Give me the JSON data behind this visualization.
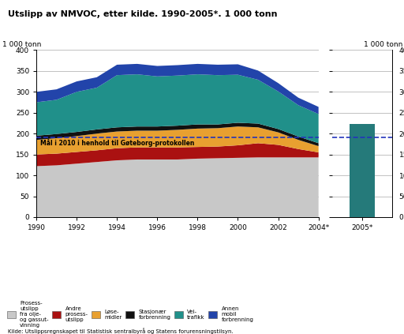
{
  "title": "Utslipp av NMVOC, etter kilde. 1990-2005*. 1 000 tonn",
  "ylabel_left": "1 000 tonn",
  "ylabel_right": "1 000 tonn",
  "source": "Kilde: Utslippsregnskapet til Statistisk sentralbyrå og Statens forurensningstilsyn.",
  "years": [
    1990,
    1991,
    1992,
    1993,
    1994,
    1995,
    1996,
    1997,
    1998,
    1999,
    2000,
    2001,
    2002,
    2003,
    2004
  ],
  "year_labels": [
    "1990",
    "1992",
    "1994",
    "1996",
    "1998",
    "2000",
    "2002",
    "2004*"
  ],
  "year_ticks": [
    1990,
    1992,
    1994,
    1996,
    1998,
    2000,
    2002,
    2004
  ],
  "prosess": [
    122,
    124,
    128,
    132,
    136,
    138,
    138,
    138,
    140,
    141,
    142,
    143,
    143,
    143,
    143
  ],
  "andre": [
    28,
    28,
    28,
    28,
    29,
    29,
    29,
    29,
    28,
    28,
    30,
    34,
    30,
    20,
    12
  ],
  "losemidler": [
    35,
    37,
    38,
    40,
    40,
    40,
    40,
    42,
    44,
    44,
    45,
    38,
    30,
    22,
    15
  ],
  "stasjonaer": [
    10,
    10,
    10,
    10,
    10,
    10,
    10,
    10,
    10,
    9,
    9,
    9,
    8,
    8,
    7
  ],
  "veitrafikk": [
    80,
    82,
    96,
    100,
    125,
    125,
    120,
    120,
    120,
    118,
    115,
    105,
    90,
    75,
    70
  ],
  "annen_mobil": [
    25,
    25,
    25,
    25,
    25,
    25,
    25,
    25,
    25,
    25,
    25,
    22,
    20,
    18,
    17
  ],
  "bar_2005": 224,
  "bar_color": "#257a7a",
  "target_line": 190,
  "target_label": "Mål i 2010 i henhold til Gøteborg-protokollen",
  "colors": {
    "prosess": "#c8c8c8",
    "andre": "#aa1111",
    "losemidler": "#e8a030",
    "stasjonaer": "#111111",
    "veitrafikk": "#20908a",
    "annen_mobil": "#2244aa"
  },
  "legend_labels": [
    "Prosess-\nutslipp\nfra olje-\nog gassut-\nvinning",
    "Andre\nprosess-\nutslipp",
    "Løse-\nmidler",
    "Stasjonær\nforbrenning",
    "Vei-\ntrafikk",
    "Annen\nmobil\nforbrenning"
  ],
  "ylim": [
    0,
    400
  ],
  "yticks": [
    0,
    50,
    100,
    150,
    200,
    250,
    300,
    350,
    400
  ]
}
